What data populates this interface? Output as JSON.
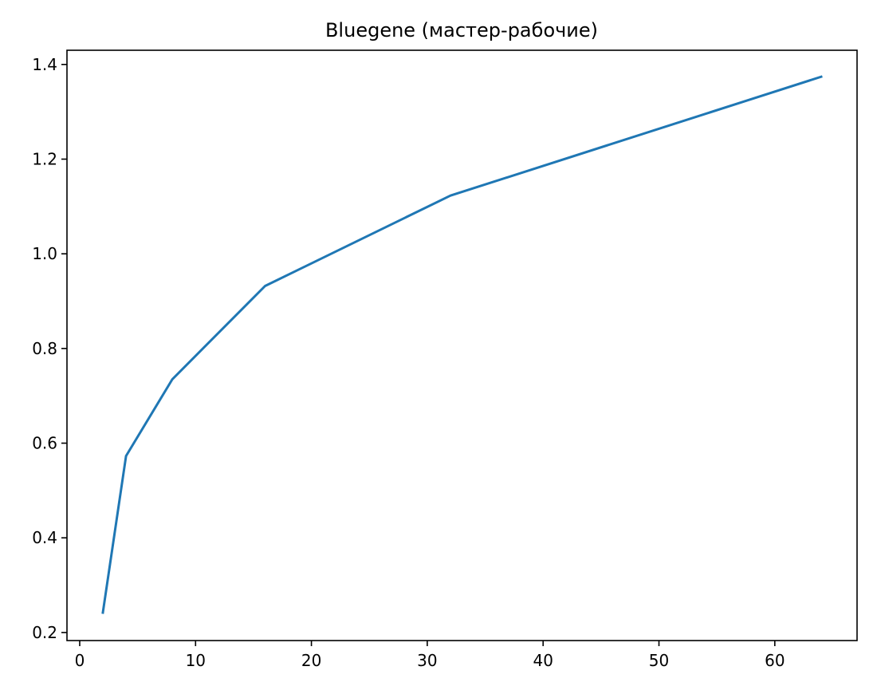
{
  "chart_data": {
    "type": "line",
    "title": "Bluegene (мастер-рабочие)",
    "xlabel": "",
    "ylabel": "",
    "xlim": [
      -1.1,
      67.1
    ],
    "ylim": [
      0.183,
      1.43
    ],
    "xticks": [
      0,
      10,
      20,
      30,
      40,
      50,
      60
    ],
    "xtick_labels": [
      "0",
      "10",
      "20",
      "30",
      "40",
      "50",
      "60"
    ],
    "yticks": [
      0.2,
      0.4,
      0.6,
      0.8,
      1.0,
      1.2,
      1.4
    ],
    "ytick_labels": [
      "0.2",
      "0.4",
      "0.6",
      "0.8",
      "1.0",
      "1.2",
      "1.4"
    ],
    "grid": false,
    "series": [
      {
        "color": "#1f77b4",
        "x": [
          2,
          4,
          8,
          16,
          32,
          64
        ],
        "y": [
          0.242,
          0.573,
          0.735,
          0.932,
          1.123,
          1.374
        ]
      }
    ]
  }
}
